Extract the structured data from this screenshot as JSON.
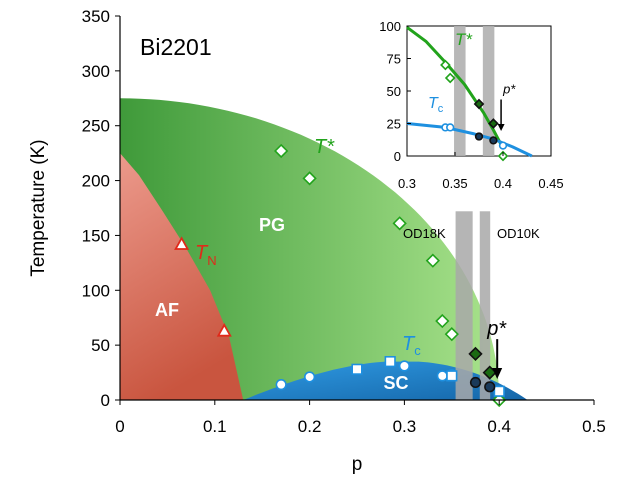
{
  "chart_data": [
    {
      "id": "main",
      "type": "scatter",
      "title": "Bi2201",
      "xlabel": "p",
      "ylabel": "Temperature (K)",
      "xlim": [
        0,
        0.5
      ],
      "ylim": [
        0,
        350
      ],
      "x_ticks": [
        0,
        0.1,
        0.2,
        0.3,
        0.4,
        0.5
      ],
      "x_tick_labels": [
        "0",
        "0.1",
        "0.2",
        "0.3",
        "0.4",
        "0.5"
      ],
      "y_ticks": [
        0,
        50,
        100,
        150,
        200,
        250,
        300,
        350
      ],
      "y_tick_labels": [
        "0",
        "50",
        "100",
        "150",
        "200",
        "250",
        "300",
        "350"
      ],
      "regions": [
        {
          "label": "AF",
          "color": "#e07060",
          "x_max_at_T0": 0.13,
          "T_max": 225
        },
        {
          "label": "PG",
          "color": "#5fb34e",
          "p_end": 0.4,
          "T_max": 275
        },
        {
          "label": "SC",
          "color": "#2a8fd6",
          "p_start": 0.13,
          "p_end": 0.43,
          "T_max": 35
        }
      ],
      "curve_labels": [
        {
          "text": "T*",
          "color": "#22a31c"
        },
        {
          "main": "T",
          "sub": "N",
          "color": "#e02a1a"
        },
        {
          "main": "T",
          "sub": "c",
          "color": "#1e90e0"
        }
      ],
      "bands": [
        {
          "label": "OD18K",
          "x_center": 0.363,
          "width": 0.018,
          "color": "#a8a8a8"
        },
        {
          "label": "OD10K",
          "x_center": 0.385,
          "width": 0.011,
          "color": "#a8a8a8"
        }
      ],
      "annotation": {
        "text": "p*",
        "x": 0.4,
        "y_from": 20,
        "y_to": 50
      },
      "series": [
        {
          "name": "T*",
          "marker": "diamond-open",
          "color": "#22a31c",
          "x": [
            0.17,
            0.2,
            0.295,
            0.33,
            0.34,
            0.35,
            0.4
          ],
          "y": [
            227,
            202,
            161,
            127,
            72,
            60,
            0
          ]
        },
        {
          "name": "T*",
          "marker": "diamond-filled",
          "color": "#1a6a12",
          "x": [
            0.375,
            0.39
          ],
          "y": [
            42,
            25
          ]
        },
        {
          "name": "TN",
          "marker": "triangle-open",
          "color": "#e02a1a",
          "x": [
            0.065,
            0.11
          ],
          "y": [
            142,
            63
          ]
        },
        {
          "name": "Tc",
          "marker": "circle-open",
          "color": "#1e90e0",
          "x": [
            0.17,
            0.2,
            0.3,
            0.34,
            0.35,
            0.4
          ],
          "y": [
            14,
            21,
            31,
            22,
            23,
            8
          ]
        },
        {
          "name": "Tc",
          "marker": "square-open",
          "color": "#1e90e0",
          "x": [
            0.25,
            0.285,
            0.35,
            0.4
          ],
          "y": [
            28,
            35,
            22,
            8
          ]
        },
        {
          "name": "Tc",
          "marker": "circle-filled",
          "color": "#1a3a5a",
          "x": [
            0.375,
            0.39
          ],
          "y": [
            16,
            12
          ]
        }
      ]
    },
    {
      "id": "inset",
      "type": "line",
      "xlim": [
        0.3,
        0.45
      ],
      "ylim": [
        0,
        100
      ],
      "x_ticks": [
        0.3,
        0.35,
        0.4,
        0.45
      ],
      "x_tick_labels": [
        "0.3",
        "0.35",
        "0.4",
        "0.45"
      ],
      "y_ticks": [
        0,
        25,
        50,
        75,
        100
      ],
      "y_tick_labels": [
        "0",
        "25",
        "50",
        "75",
        "100"
      ],
      "curve_labels": [
        {
          "text": "T*",
          "color": "#22a31c"
        },
        {
          "main": "T",
          "sub": "c",
          "color": "#1e90e0"
        }
      ],
      "bands": [
        {
          "x_center": 0.355,
          "width": 0.012,
          "color": "#b0b0b0"
        },
        {
          "x_center": 0.385,
          "width": 0.012,
          "color": "#b0b0b0"
        }
      ],
      "annotation": {
        "text": "p*",
        "x": 0.398,
        "y_from": 20,
        "y_to": 45
      },
      "series": [
        {
          "name": "T* fit",
          "style": "line",
          "color": "#22a31c",
          "x": [
            0.3,
            0.32,
            0.34,
            0.36,
            0.38,
            0.39,
            0.4
          ],
          "y": [
            99,
            88,
            72,
            55,
            33,
            20,
            6
          ]
        },
        {
          "name": "Tc fit",
          "style": "line",
          "color": "#1e90e0",
          "x": [
            0.3,
            0.34,
            0.37,
            0.39,
            0.41,
            0.43
          ],
          "y": [
            25,
            22,
            17,
            13,
            7,
            0
          ]
        },
        {
          "name": "T*",
          "marker": "diamond-open",
          "color": "#22a31c",
          "x": [
            0.34,
            0.345,
            0.4
          ],
          "y": [
            70,
            60,
            0
          ]
        },
        {
          "name": "T*",
          "marker": "diamond-filled",
          "color": "#1a6a12",
          "x": [
            0.375,
            0.39
          ],
          "y": [
            40,
            25
          ]
        },
        {
          "name": "Tc",
          "marker": "circle-open",
          "color": "#1e90e0",
          "x": [
            0.34,
            0.345,
            0.4
          ],
          "y": [
            22,
            22,
            8
          ]
        },
        {
          "name": "Tc",
          "marker": "circle-filled",
          "color": "#1a3a5a",
          "x": [
            0.375,
            0.39
          ],
          "y": [
            15,
            12
          ]
        }
      ]
    }
  ]
}
